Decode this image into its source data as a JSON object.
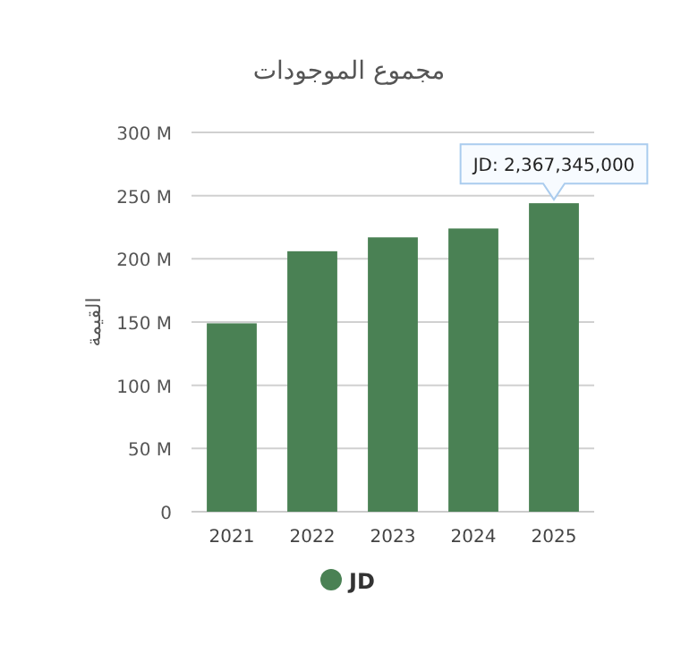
{
  "chart_data": {
    "type": "bar",
    "title": "مجموع الموجودات",
    "ylabel": "القيمة",
    "categories": [
      "2021",
      "2022",
      "2023",
      "2024",
      "2025"
    ],
    "series": [
      {
        "name": "JD",
        "color": "#4a8154",
        "values": [
          149,
          206,
          217,
          224,
          244
        ]
      }
    ],
    "ylim": [
      0,
      300
    ],
    "yticks": [
      {
        "value": 0,
        "label": "0"
      },
      {
        "value": 50,
        "label": "50 M"
      },
      {
        "value": 100,
        "label": "100 M"
      },
      {
        "value": 150,
        "label": "150 M"
      },
      {
        "value": 200,
        "label": "200 M"
      },
      {
        "value": 250,
        "label": "250 M"
      },
      {
        "value": 300,
        "label": "300 M"
      }
    ],
    "grid": "y",
    "legend": "bottom",
    "annotations": [
      "JD: 2,367,345,000"
    ]
  }
}
